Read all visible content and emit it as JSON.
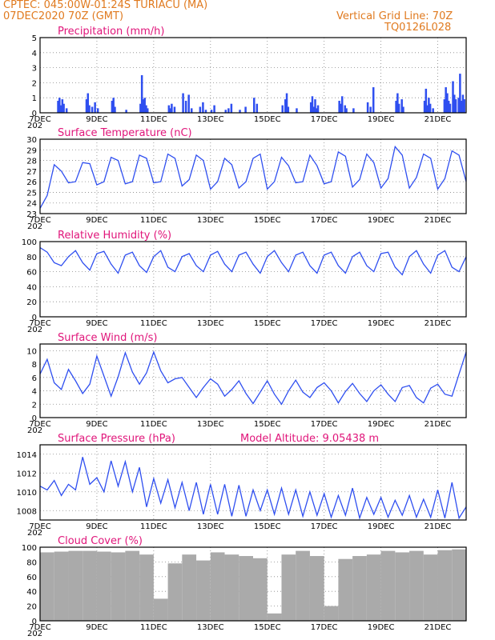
{
  "header": {
    "line1_left": "CPTEC:   045:00W-01:24S   TURIACU (MA)",
    "line2_left": "07DEC2020 70Z (GMT)",
    "line2_right": "Vertical Grid Line: 70Z",
    "line3_right": "TQ0126L028"
  },
  "x_axis": {
    "tick_labels": [
      "7DEC",
      "9DEC",
      "11DEC",
      "13DEC",
      "15DEC",
      "17DEC",
      "19DEC",
      "21DEC"
    ],
    "tick_days": [
      0,
      2,
      4,
      6,
      8,
      10,
      12,
      14
    ],
    "sublabel": "202",
    "range_days": [
      0,
      15
    ]
  },
  "colors": {
    "line": "#2f4ff0",
    "bar": "#2f4ff0",
    "cloud": "#aaaaaa",
    "title": "#e0157a",
    "header": "#e07a1f",
    "grid": "#888888"
  },
  "chart_data": [
    {
      "type": "bar",
      "title": "Precipitation (mm/h)",
      "ylim": [
        0,
        5
      ],
      "yticks": [
        0,
        1,
        2,
        3,
        4,
        5
      ],
      "grid": true,
      "x": [
        0.6,
        0.65,
        0.7,
        0.75,
        0.8,
        0.9,
        1.6,
        1.65,
        1.7,
        1.8,
        1.9,
        2.0,
        2.5,
        2.55,
        2.6,
        3.0,
        3.5,
        3.55,
        3.6,
        3.65,
        3.7,
        3.75,
        4.5,
        4.55,
        4.6,
        4.7,
        5.0,
        5.1,
        5.2,
        5.3,
        5.6,
        5.7,
        5.8,
        6.0,
        6.1,
        6.5,
        6.6,
        6.7,
        7.0,
        7.2,
        7.5,
        7.6,
        8.5,
        8.6,
        8.65,
        8.7,
        9.0,
        9.5,
        9.55,
        9.6,
        9.65,
        9.7,
        9.75,
        10.5,
        10.55,
        10.6,
        10.7,
        10.75,
        11.0,
        11.5,
        11.6,
        11.7,
        12.5,
        12.55,
        12.6,
        12.7,
        12.75,
        13.5,
        13.55,
        13.6,
        13.65,
        13.7,
        13.8,
        14.2,
        14.25,
        14.3,
        14.35,
        14.4,
        14.5,
        14.55,
        14.6,
        14.7,
        14.75,
        14.8,
        14.85,
        14.9
      ],
      "values": [
        0.8,
        1.0,
        0.5,
        0.9,
        0.6,
        0.3,
        0.9,
        1.3,
        0.5,
        0.4,
        0.7,
        0.3,
        0.8,
        1.0,
        0.4,
        0.2,
        0.6,
        2.5,
        0.9,
        1.0,
        0.5,
        0.3,
        0.5,
        0.3,
        0.6,
        0.4,
        1.3,
        0.8,
        1.2,
        0.3,
        0.4,
        0.7,
        0.2,
        0.2,
        0.5,
        0.2,
        0.3,
        0.6,
        0.2,
        0.4,
        1.0,
        0.6,
        0.5,
        0.9,
        1.3,
        0.4,
        0.3,
        0.7,
        1.1,
        0.4,
        0.9,
        0.3,
        0.5,
        0.8,
        0.6,
        1.1,
        0.5,
        0.3,
        0.3,
        0.7,
        0.4,
        1.7,
        0.8,
        1.3,
        0.6,
        0.9,
        0.4,
        0.8,
        1.6,
        0.5,
        1.0,
        0.6,
        0.3,
        0.9,
        1.7,
        1.3,
        0.8,
        0.6,
        2.1,
        1.2,
        0.9,
        1.0,
        2.6,
        0.8,
        1.2,
        0.9
      ]
    },
    {
      "type": "line",
      "title": "Surface Temperature (nC)",
      "ylim": [
        23,
        30
      ],
      "yticks": [
        23,
        24,
        25,
        26,
        27,
        28,
        29,
        30
      ],
      "grid": true,
      "x": [
        0,
        0.25,
        0.5,
        0.75,
        1.0,
        1.25,
        1.5,
        1.75,
        2.0,
        2.25,
        2.5,
        2.75,
        3.0,
        3.25,
        3.5,
        3.75,
        4.0,
        4.25,
        4.5,
        4.75,
        5.0,
        5.25,
        5.5,
        5.75,
        6.0,
        6.25,
        6.5,
        6.75,
        7.0,
        7.25,
        7.5,
        7.75,
        8.0,
        8.25,
        8.5,
        8.75,
        9.0,
        9.25,
        9.5,
        9.75,
        10.0,
        10.25,
        10.5,
        10.75,
        11.0,
        11.25,
        11.5,
        11.75,
        12.0,
        12.25,
        12.5,
        12.75,
        13.0,
        13.25,
        13.5,
        13.75,
        14.0,
        14.25,
        14.5,
        14.75,
        15.0
      ],
      "values": [
        23.5,
        24.7,
        27.6,
        27.0,
        25.9,
        26.0,
        27.8,
        27.7,
        25.7,
        26.0,
        28.3,
        28.0,
        25.8,
        26.0,
        28.5,
        28.2,
        25.9,
        26.0,
        28.6,
        28.2,
        25.6,
        26.2,
        28.5,
        28.0,
        25.3,
        26.0,
        28.2,
        27.6,
        25.4,
        26.0,
        28.2,
        28.6,
        25.3,
        26.0,
        28.3,
        27.5,
        25.9,
        26.0,
        28.5,
        27.5,
        25.8,
        26.0,
        28.8,
        28.4,
        25.5,
        26.2,
        28.6,
        27.8,
        25.4,
        26.3,
        29.3,
        28.5,
        25.4,
        26.4,
        28.6,
        28.2,
        25.3,
        26.3,
        28.9,
        28.5,
        26.0
      ]
    },
    {
      "type": "line",
      "title": "Relative Humidity (%)",
      "ylim": [
        0,
        100
      ],
      "yticks": [
        0,
        20,
        40,
        60,
        80,
        100
      ],
      "grid": true,
      "x": [
        0,
        0.25,
        0.5,
        0.75,
        1.0,
        1.25,
        1.5,
        1.75,
        2.0,
        2.25,
        2.5,
        2.75,
        3.0,
        3.25,
        3.5,
        3.75,
        4.0,
        4.25,
        4.5,
        4.75,
        5.0,
        5.25,
        5.5,
        5.75,
        6.0,
        6.25,
        6.5,
        6.75,
        7.0,
        7.25,
        7.5,
        7.75,
        8.0,
        8.25,
        8.5,
        8.75,
        9.0,
        9.25,
        9.5,
        9.75,
        10.0,
        10.25,
        10.5,
        10.75,
        11.0,
        11.25,
        11.5,
        11.75,
        12.0,
        12.25,
        12.5,
        12.75,
        13.0,
        13.25,
        13.5,
        13.75,
        14.0,
        14.25,
        14.5,
        14.75,
        15.0
      ],
      "values": [
        92,
        86,
        72,
        68,
        80,
        88,
        72,
        62,
        84,
        87,
        70,
        58,
        82,
        86,
        68,
        59,
        80,
        88,
        66,
        60,
        80,
        84,
        68,
        60,
        82,
        87,
        70,
        60,
        82,
        86,
        70,
        58,
        80,
        88,
        72,
        60,
        82,
        86,
        68,
        58,
        82,
        86,
        68,
        58,
        80,
        86,
        68,
        60,
        84,
        86,
        66,
        56,
        80,
        88,
        70,
        58,
        82,
        88,
        66,
        60,
        80
      ]
    },
    {
      "type": "line",
      "title": "Surface Wind (m/s)",
      "ylim": [
        0,
        11
      ],
      "yticks": [
        0,
        2,
        4,
        6,
        8,
        10
      ],
      "grid": true,
      "x": [
        0,
        0.25,
        0.5,
        0.75,
        1.0,
        1.25,
        1.5,
        1.75,
        2.0,
        2.25,
        2.5,
        2.75,
        3.0,
        3.25,
        3.5,
        3.75,
        4.0,
        4.25,
        4.5,
        4.75,
        5.0,
        5.25,
        5.5,
        5.75,
        6.0,
        6.25,
        6.5,
        6.75,
        7.0,
        7.25,
        7.5,
        7.75,
        8.0,
        8.25,
        8.5,
        8.75,
        9.0,
        9.25,
        9.5,
        9.75,
        10.0,
        10.25,
        10.5,
        10.75,
        11.0,
        11.25,
        11.5,
        11.75,
        12.0,
        12.25,
        12.5,
        12.75,
        13.0,
        13.25,
        13.5,
        13.75,
        14.0,
        14.25,
        14.5,
        14.75,
        15.0
      ],
      "values": [
        6.5,
        8.7,
        5.2,
        4.2,
        7.2,
        5.5,
        3.6,
        5.0,
        9.2,
        6.2,
        3.2,
        6.1,
        9.7,
        6.8,
        5.0,
        6.7,
        9.8,
        7.0,
        5.2,
        5.8,
        6.0,
        4.5,
        3.0,
        4.5,
        5.8,
        5.0,
        3.2,
        4.2,
        5.5,
        3.6,
        2.1,
        3.8,
        5.5,
        3.5,
        2.0,
        4.0,
        5.6,
        3.8,
        3.0,
        4.5,
        5.2,
        4.0,
        2.2,
        3.9,
        5.1,
        3.6,
        2.4,
        4.0,
        4.9,
        3.5,
        2.4,
        4.5,
        4.8,
        3.0,
        2.2,
        4.4,
        5.0,
        3.5,
        3.2,
        6.5,
        9.8
      ]
    },
    {
      "type": "line",
      "title": "Surface Pressure (hPa)",
      "annotation": "Model Altitude:  9.05438 m",
      "ylim": [
        1007,
        1015
      ],
      "yticks": [
        1008,
        1010,
        1012,
        1014
      ],
      "grid": true,
      "x": [
        0,
        0.25,
        0.5,
        0.75,
        1.0,
        1.25,
        1.5,
        1.75,
        2.0,
        2.25,
        2.5,
        2.75,
        3.0,
        3.25,
        3.5,
        3.75,
        4.0,
        4.25,
        4.5,
        4.75,
        5.0,
        5.25,
        5.5,
        5.75,
        6.0,
        6.25,
        6.5,
        6.75,
        7.0,
        7.25,
        7.5,
        7.75,
        8.0,
        8.25,
        8.5,
        8.75,
        9.0,
        9.25,
        9.5,
        9.75,
        10.0,
        10.25,
        10.5,
        10.75,
        11.0,
        11.25,
        11.5,
        11.75,
        12.0,
        12.25,
        12.5,
        12.75,
        13.0,
        13.25,
        13.5,
        13.75,
        14.0,
        14.25,
        14.5,
        14.75,
        15.0
      ],
      "values": [
        1010.6,
        1010.2,
        1011.2,
        1009.6,
        1010.8,
        1010.2,
        1013.7,
        1010.8,
        1011.5,
        1010.0,
        1013.3,
        1010.6,
        1013.2,
        1010.0,
        1012.6,
        1008.4,
        1011.4,
        1008.8,
        1011.3,
        1008.3,
        1011.0,
        1008.0,
        1011.0,
        1007.6,
        1010.8,
        1007.6,
        1010.8,
        1007.4,
        1010.7,
        1007.4,
        1010.2,
        1008.0,
        1010.2,
        1007.6,
        1010.4,
        1007.6,
        1010.2,
        1007.4,
        1010.0,
        1007.5,
        1009.8,
        1007.3,
        1009.6,
        1007.5,
        1010.4,
        1007.2,
        1009.4,
        1007.6,
        1009.4,
        1007.3,
        1009.1,
        1007.5,
        1009.6,
        1007.3,
        1009.2,
        1007.3,
        1010.2,
        1007.2,
        1011.0,
        1007.2,
        1008.4
      ]
    },
    {
      "type": "bar",
      "title": "Cloud Cover (%)",
      "ylim": [
        0,
        100
      ],
      "yticks": [
        0,
        20,
        40,
        60,
        80,
        100
      ],
      "grid": true,
      "x": [
        0,
        0.5,
        1.0,
        1.5,
        2.0,
        2.5,
        3.0,
        3.5,
        4.0,
        4.5,
        5.0,
        5.5,
        6.0,
        6.5,
        7.0,
        7.5,
        8.0,
        8.5,
        9.0,
        9.5,
        10.0,
        10.5,
        11.0,
        11.5,
        12.0,
        12.5,
        13.0,
        13.5,
        14.0,
        14.5
      ],
      "values": [
        93,
        94,
        95,
        95,
        94,
        93,
        95,
        90,
        30,
        78,
        90,
        82,
        93,
        90,
        88,
        85,
        10,
        90,
        95,
        88,
        20,
        84,
        88,
        90,
        95,
        93,
        95,
        90,
        96,
        97
      ]
    }
  ]
}
